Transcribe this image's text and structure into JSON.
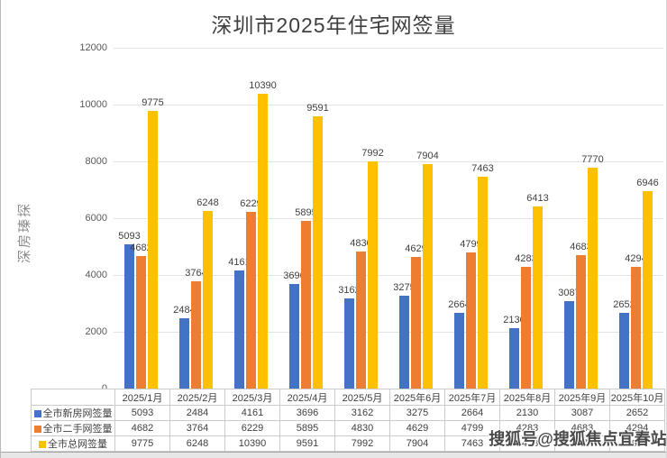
{
  "title": "深圳市2025年住宅网签量",
  "watermarks": {
    "left_vertical": "深房瑧探",
    "bottom_right": "搜狐号@搜狐焦点宜春站"
  },
  "colors": {
    "new_home_blue": "#4472C4",
    "second_hand_orange": "#ED7D31",
    "total_yellow": "#FFC000",
    "gridline": "#e3e3e3",
    "axis_text": "#595959",
    "label_text": "#404040"
  },
  "chart_data": {
    "type": "bar",
    "title": "深圳市2025年住宅网签量",
    "categories": [
      "2025/1月",
      "2025/2月",
      "2025/3月",
      "2025/4月",
      "2025/5月",
      "2025年6月",
      "2025年7月",
      "2025年8月",
      "2025年9月",
      "2025年10月"
    ],
    "series": [
      {
        "name": "全市新房网签量",
        "color": "#4472C4",
        "values": [
          5093,
          2484,
          4161,
          3696,
          3162,
          3275,
          2664,
          2130,
          3087,
          2652
        ]
      },
      {
        "name": "全市二手网签量",
        "color": "#ED7D31",
        "values": [
          4682,
          3764,
          6229,
          5895,
          4830,
          4629,
          4799,
          4283,
          4683,
          4294
        ]
      },
      {
        "name": "全市总网签量",
        "color": "#FFC000",
        "values": [
          9775,
          6248,
          10390,
          9591,
          7992,
          7904,
          7463,
          6413,
          7770,
          6946
        ]
      }
    ],
    "xlabel": "",
    "ylabel": "",
    "ylim": [
      0,
      12000
    ],
    "y_ticks": [
      0,
      2000,
      4000,
      6000,
      8000,
      10000,
      12000
    ],
    "grid": true,
    "data_labels": true,
    "legend_position": "table-row-headers"
  }
}
